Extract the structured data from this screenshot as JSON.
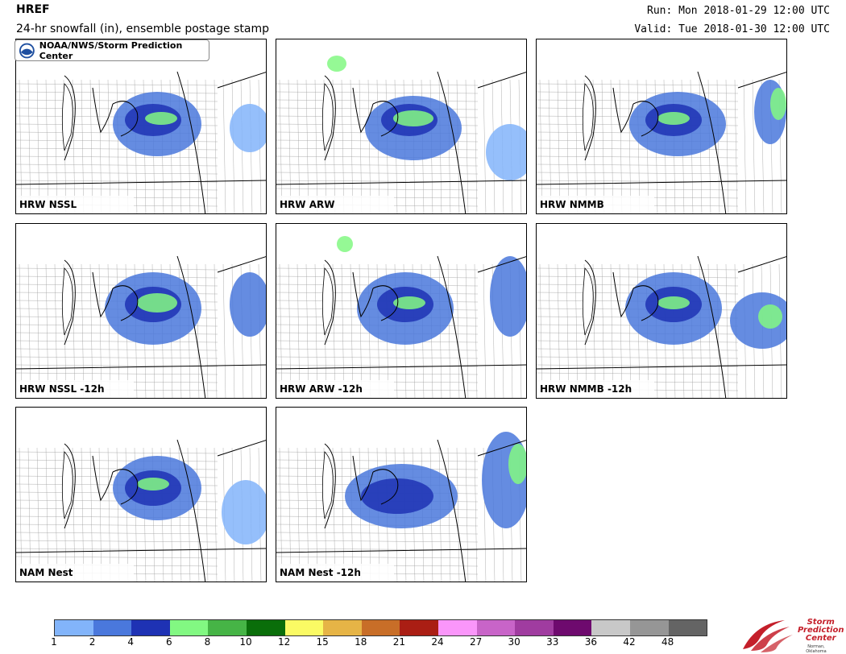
{
  "header": {
    "title": "HREF",
    "subtitle": "24-hr snowfall (in), ensemble postage stamp",
    "run": "Run: Mon 2018-01-29 12:00 UTC",
    "valid": "Valid: Tue 2018-01-30 12:00 UTC"
  },
  "badge": {
    "text": "NOAA/NWS/Storm Prediction Center"
  },
  "panels": [
    {
      "label": "HRW NSSL"
    },
    {
      "label": "HRW ARW"
    },
    {
      "label": "HRW NMMB"
    },
    {
      "label": "HRW NSSL -12h"
    },
    {
      "label": "HRW ARW -12h"
    },
    {
      "label": "HRW NMMB -12h"
    },
    {
      "label": "NAM Nest"
    },
    {
      "label": "NAM Nest -12h"
    }
  ],
  "legend": {
    "colors": [
      "#82b4fa",
      "#4a78dc",
      "#1e32b4",
      "#82f882",
      "#46b446",
      "#0a6e0a",
      "#fafa64",
      "#e6b446",
      "#c86e28",
      "#aa1e14",
      "#fa96fa",
      "#c864c8",
      "#a03ca0",
      "#6e0a6e",
      "#c8c8c8",
      "#969696",
      "#646464"
    ],
    "ticks": [
      "1",
      "2",
      "4",
      "6",
      "8",
      "10",
      "12",
      "15",
      "18",
      "21",
      "24",
      "27",
      "30",
      "33",
      "36",
      "42",
      "48"
    ]
  },
  "logo": {
    "line1": "Storm",
    "line2": "Prediction",
    "line3": "Center",
    "line4": "Norman, Oklahoma"
  }
}
